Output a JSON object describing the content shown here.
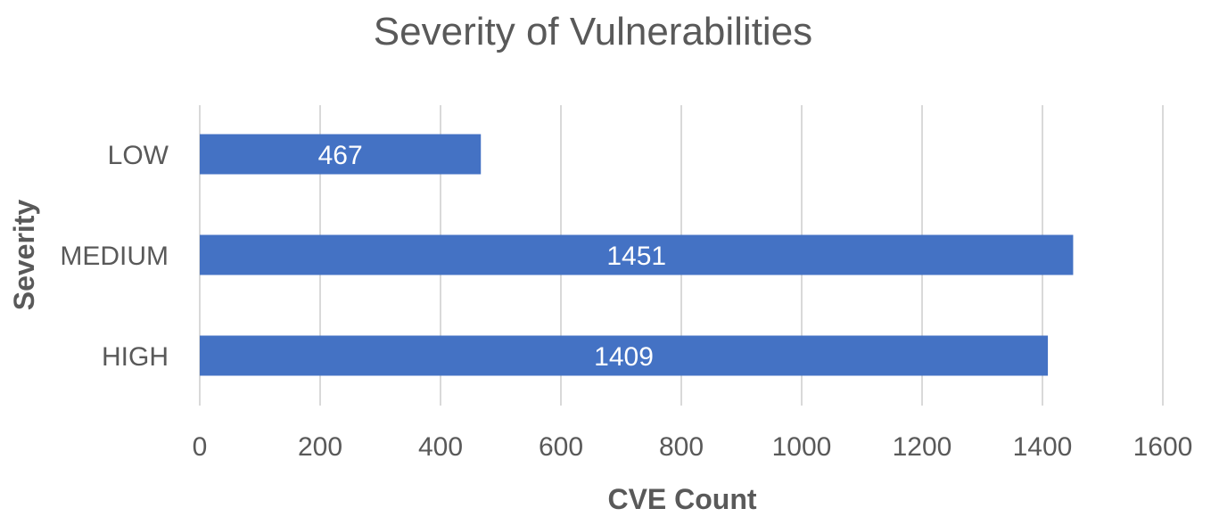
{
  "chart_data": {
    "type": "bar",
    "orientation": "horizontal",
    "title": "Severity of Vulnerabilities",
    "xlabel": "CVE Count",
    "ylabel": "Severity",
    "categories": [
      "LOW",
      "MEDIUM",
      "HIGH"
    ],
    "values": [
      467,
      1451,
      1409
    ],
    "data_labels": [
      "467",
      "1451",
      "1409"
    ],
    "xlim": [
      0,
      1600
    ],
    "xticks": [
      0,
      200,
      400,
      600,
      800,
      1000,
      1200,
      1400,
      1600
    ],
    "grid": true,
    "legend": "none",
    "bar_color": "#4472c4"
  }
}
